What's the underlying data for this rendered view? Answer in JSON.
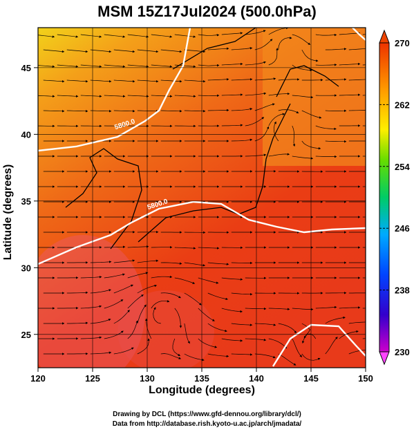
{
  "title": "MSM 15Z17Jul2024 (500.0hPa)",
  "x_axis": {
    "label": "Longitude (degrees)",
    "min": 120,
    "max": 150,
    "ticks": [
      120,
      125,
      130,
      135,
      140,
      145,
      150
    ]
  },
  "y_axis": {
    "label": "Latitude  (degrees)",
    "min": 22.5,
    "max": 48,
    "ticks": [
      25,
      30,
      35,
      40,
      45
    ]
  },
  "colorbar": {
    "min": 230,
    "max": 270,
    "labels": [
      230,
      238,
      246,
      254,
      262,
      270
    ]
  },
  "contours": [
    {
      "label": "5800.0",
      "lon": 128,
      "lat": 40.6
    },
    {
      "label": "5800.0",
      "lon": 131,
      "lat": 34.6
    }
  ],
  "credits": {
    "line1": "Drawing by DCL (https://www.gfd-dennou.org/library/dcl/)",
    "line2": "Data from http://database.rish.kyoto-u.ac.jp/arch/jmadata/"
  }
}
